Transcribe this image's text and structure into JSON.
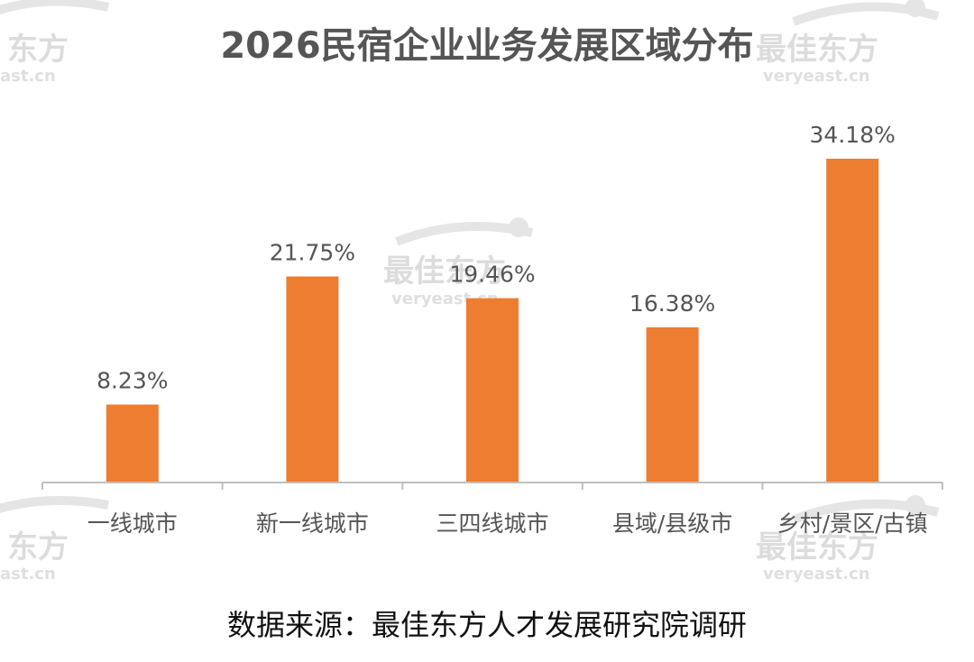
{
  "chart_data": {
    "type": "bar",
    "title": "2026民宿企业业务发展区域分布",
    "categories": [
      "一线城市",
      "新一线城市",
      "三四线城市",
      "县域/县级市",
      "乡村/景区/古镇"
    ],
    "values": [
      8.23,
      21.75,
      19.46,
      16.38,
      34.18
    ],
    "value_labels": [
      "8.23%",
      "21.75%",
      "19.46%",
      "16.38%",
      "34.18%"
    ],
    "unit": "%",
    "ylim": [
      0,
      34.18
    ],
    "grid": false,
    "legend": "none",
    "bar_color": "#ED7D31",
    "axis_color": "#BFBFBF",
    "source": "数据来源：最佳东方人才发展研究院调研"
  },
  "watermark": {
    "brand": "最佳东方",
    "brand_partial": "东方",
    "site": "veryeast.cn",
    "site_partial": "ast.cn"
  }
}
